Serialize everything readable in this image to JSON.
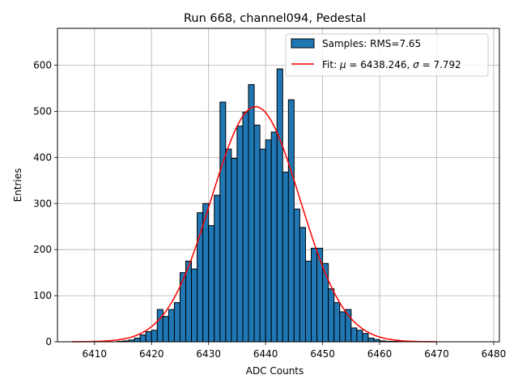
{
  "chart_data": {
    "type": "bar",
    "title": "Run 668, channel094, Pedestal",
    "xlabel": "ADC Counts",
    "ylabel": "Entries",
    "xlim": [
      6403.5,
      6481.0
    ],
    "ylim": [
      0,
      680
    ],
    "xticks": [
      6410,
      6420,
      6430,
      6440,
      6450,
      6460,
      6470,
      6480
    ],
    "yticks": [
      0,
      100,
      200,
      300,
      400,
      500,
      600
    ],
    "grid": true,
    "legend_position": "top-right",
    "bar_color": "#1f77b4",
    "bar_edge_color": "#000000",
    "fit_color": "#ff0000",
    "histogram": {
      "name": "Samples: RMS=7.65",
      "bin_width": 1,
      "bin_starts": [
        6414,
        6415,
        6416,
        6417,
        6418,
        6419,
        6420,
        6421,
        6422,
        6423,
        6424,
        6425,
        6426,
        6427,
        6428,
        6429,
        6430,
        6431,
        6432,
        6433,
        6434,
        6435,
        6436,
        6437,
        6438,
        6439,
        6440,
        6441,
        6442,
        6443,
        6444,
        6445,
        6446,
        6447,
        6448,
        6449,
        6450,
        6451,
        6452,
        6453,
        6454,
        6455,
        6456,
        6457,
        6458,
        6459,
        6460,
        6461,
        6462,
        6463
      ],
      "counts": [
        1,
        2,
        4,
        8,
        15,
        22,
        25,
        70,
        55,
        70,
        85,
        150,
        175,
        158,
        280,
        300,
        252,
        318,
        520,
        418,
        398,
        468,
        498,
        558,
        470,
        418,
        438,
        455,
        592,
        368,
        525,
        288,
        248,
        175,
        203,
        203,
        170,
        115,
        85,
        65,
        70,
        30,
        25,
        18,
        8,
        5,
        2,
        1,
        1,
        1
      ]
    },
    "fit": {
      "name_prefix": "Fit: ",
      "name_mu": "μ",
      "name_mu_value": " = 6438.246, ",
      "name_sigma": "σ",
      "name_sigma_value": " = 7.792",
      "mu": 6438.246,
      "sigma": 7.792,
      "amplitude": 510,
      "x_range": [
        6406,
        6470
      ]
    }
  }
}
